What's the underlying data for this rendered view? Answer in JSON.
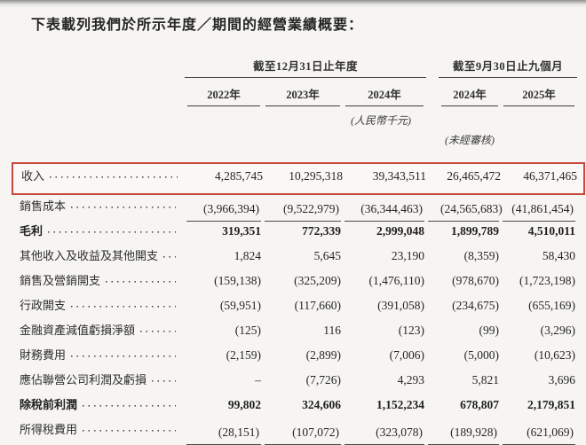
{
  "title": "下表載列我們於所示年度／期間的經營業績概要：",
  "table": {
    "highlight_color": "#c9473b",
    "groups": {
      "annual": "截至12月31日止年度",
      "interim": "截至9月30日止九個月"
    },
    "years": [
      "2022年",
      "2023年",
      "2024年",
      "2024年",
      "2025年"
    ],
    "unit_note": "(人民幣千元)",
    "audit_note": "(未經審核)",
    "rows": [
      {
        "label": "收入",
        "values": [
          "4,285,745",
          "10,295,318",
          "39,343,511",
          "26,465,472",
          "46,371,465"
        ]
      },
      {
        "label": "銷售成本",
        "values": [
          "(3,966,394)",
          "(9,522,979)",
          "(36,344,463)",
          "(24,565,683)",
          "(41,861,454)"
        ]
      },
      {
        "label": "毛利",
        "values": [
          "319,351",
          "772,339",
          "2,999,048",
          "1,899,789",
          "4,510,011"
        ]
      },
      {
        "label": "其他收入及收益及其他開支",
        "values": [
          "1,824",
          "5,645",
          "23,190",
          "(8,359)",
          "58,430"
        ]
      },
      {
        "label": "銷售及營銷開支",
        "values": [
          "(159,138)",
          "(325,209)",
          "(1,476,110)",
          "(978,670)",
          "(1,723,198)"
        ]
      },
      {
        "label": "行政開支",
        "values": [
          "(59,951)",
          "(117,660)",
          "(391,058)",
          "(234,675)",
          "(655,169)"
        ]
      },
      {
        "label": "金融資產減值虧損淨額",
        "values": [
          "(125)",
          "116",
          "(123)",
          "(99)",
          "(3,296)"
        ]
      },
      {
        "label": "財務費用",
        "values": [
          "(2,159)",
          "(2,899)",
          "(7,006)",
          "(5,000)",
          "(10,623)"
        ]
      },
      {
        "label": "應佔聯營公司利潤及虧損",
        "values": [
          "–",
          "(7,726)",
          "4,293",
          "5,821",
          "3,696"
        ]
      },
      {
        "label": "除稅前利潤",
        "values": [
          "99,802",
          "324,606",
          "1,152,234",
          "678,807",
          "2,179,851"
        ]
      },
      {
        "label": "所得稅費用",
        "values": [
          "(28,151)",
          "(107,072)",
          "(323,078)",
          "(189,928)",
          "(621,069)"
        ]
      }
    ]
  }
}
